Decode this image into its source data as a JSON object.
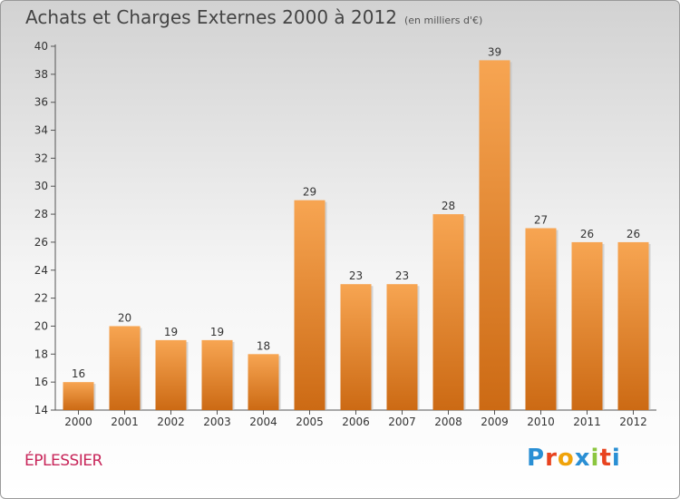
{
  "header": {
    "title": "Achats et Charges Externes 2000 à 2012",
    "unit": "(en milliers d'€)"
  },
  "footer": {
    "commune": "ÉPLESSIER",
    "logo": {
      "letters": [
        "P",
        "r",
        "o",
        "x",
        "i",
        "t",
        "i"
      ],
      "colors": [
        "#2a8fd4",
        "#e8431f",
        "#f0a30a",
        "#2a8fd4",
        "#8cc63f",
        "#e8431f",
        "#2a8fd4"
      ]
    }
  },
  "chart_data": {
    "type": "bar",
    "title": "Achats et Charges Externes 2000 à 2012",
    "subtitle": "(en milliers d'€)",
    "categories": [
      "2000",
      "2001",
      "2002",
      "2003",
      "2004",
      "2005",
      "2006",
      "2007",
      "2008",
      "2009",
      "2010",
      "2011",
      "2012"
    ],
    "values": [
      16,
      20,
      19,
      19,
      18,
      29,
      23,
      23,
      28,
      39,
      27,
      26,
      26
    ],
    "ylim": [
      14,
      40
    ],
    "yticks": [
      14,
      16,
      18,
      20,
      22,
      24,
      26,
      28,
      30,
      32,
      34,
      36,
      38,
      40
    ],
    "grid": false,
    "bar_color_top": "#f7a552",
    "bar_color_bottom": "#cc6a14"
  }
}
